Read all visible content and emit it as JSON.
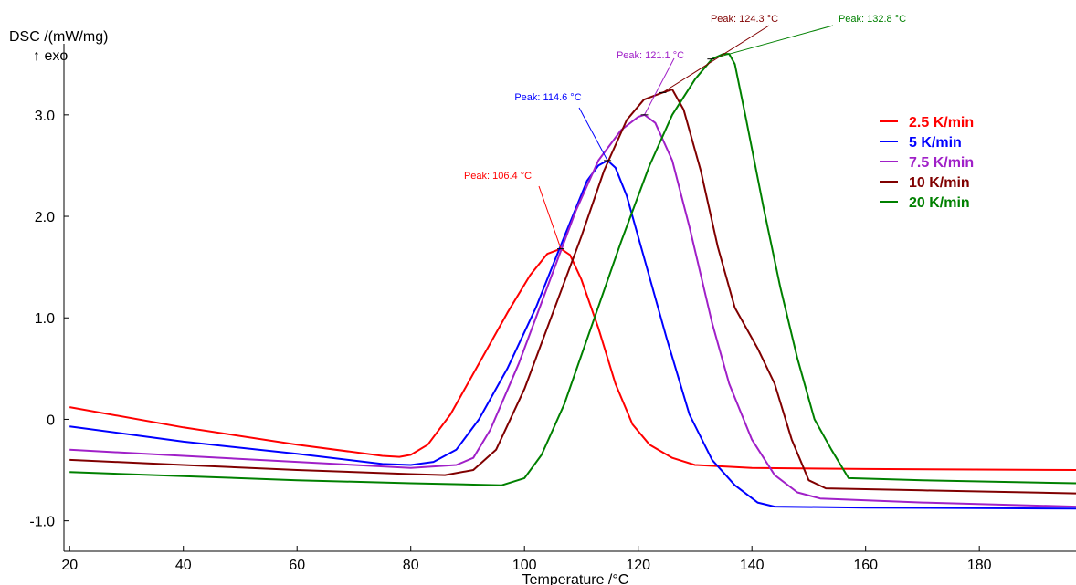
{
  "chart_data": {
    "type": "line",
    "ylabel": "DSC /(mW/mg)",
    "ylabel_sub": "↑ exo",
    "xlabel": "Temperature /°C",
    "xlim": [
      19,
      197
    ],
    "ylim": [
      -1.3,
      3.7
    ],
    "x_ticks": [
      20,
      40,
      60,
      80,
      100,
      120,
      140,
      160,
      180
    ],
    "x_tick_labels": [
      "20",
      "40",
      "60",
      "80",
      "100",
      "120",
      "140",
      "160",
      "180"
    ],
    "y_ticks": [
      -1.0,
      0,
      1.0,
      2.0,
      3.0
    ],
    "y_tick_labels": [
      "-1.0",
      "0",
      "1.0",
      "2.0",
      "3.0"
    ],
    "grid": false,
    "legend_position": "top-right",
    "series": [
      {
        "name": "2.5 K/min",
        "color": "#ff0000",
        "points": [
          [
            20,
            0.12
          ],
          [
            40,
            -0.08
          ],
          [
            60,
            -0.25
          ],
          [
            75,
            -0.36
          ],
          [
            78,
            -0.37
          ],
          [
            80,
            -0.35
          ],
          [
            83,
            -0.25
          ],
          [
            87,
            0.05
          ],
          [
            92,
            0.55
          ],
          [
            97,
            1.05
          ],
          [
            101,
            1.42
          ],
          [
            104,
            1.63
          ],
          [
            106.4,
            1.68
          ],
          [
            108,
            1.62
          ],
          [
            110,
            1.38
          ],
          [
            113,
            0.9
          ],
          [
            116,
            0.35
          ],
          [
            119,
            -0.05
          ],
          [
            122,
            -0.25
          ],
          [
            126,
            -0.38
          ],
          [
            130,
            -0.45
          ],
          [
            140,
            -0.48
          ],
          [
            160,
            -0.49
          ],
          [
            197,
            -0.5
          ]
        ],
        "peak_label": "Peak: 106.4 °C",
        "peak_x": 106.4,
        "peak_y": 1.68
      },
      {
        "name": "5 K/min",
        "color": "#0000ff",
        "points": [
          [
            20,
            -0.07
          ],
          [
            40,
            -0.22
          ],
          [
            60,
            -0.34
          ],
          [
            75,
            -0.44
          ],
          [
            80,
            -0.45
          ],
          [
            84,
            -0.42
          ],
          [
            88,
            -0.3
          ],
          [
            92,
            0.0
          ],
          [
            97,
            0.5
          ],
          [
            102,
            1.1
          ],
          [
            107,
            1.8
          ],
          [
            111,
            2.35
          ],
          [
            113,
            2.5
          ],
          [
            114.6,
            2.55
          ],
          [
            116,
            2.48
          ],
          [
            118,
            2.2
          ],
          [
            121,
            1.6
          ],
          [
            125,
            0.8
          ],
          [
            129,
            0.05
          ],
          [
            133,
            -0.4
          ],
          [
            137,
            -0.65
          ],
          [
            141,
            -0.82
          ],
          [
            144,
            -0.86
          ],
          [
            160,
            -0.87
          ],
          [
            197,
            -0.88
          ]
        ],
        "peak_label": "Peak: 114.6 °C",
        "peak_x": 114.6,
        "peak_y": 2.55
      },
      {
        "name": "7.5 K/min",
        "color": "#a020c8",
        "points": [
          [
            20,
            -0.3
          ],
          [
            40,
            -0.36
          ],
          [
            60,
            -0.42
          ],
          [
            80,
            -0.48
          ],
          [
            88,
            -0.45
          ],
          [
            91,
            -0.38
          ],
          [
            94,
            -0.1
          ],
          [
            99,
            0.55
          ],
          [
            104,
            1.3
          ],
          [
            109,
            2.05
          ],
          [
            113,
            2.55
          ],
          [
            117,
            2.85
          ],
          [
            120,
            2.98
          ],
          [
            121.1,
            3.0
          ],
          [
            123,
            2.92
          ],
          [
            126,
            2.55
          ],
          [
            129,
            1.9
          ],
          [
            133,
            0.95
          ],
          [
            136,
            0.35
          ],
          [
            140,
            -0.2
          ],
          [
            144,
            -0.55
          ],
          [
            148,
            -0.72
          ],
          [
            152,
            -0.78
          ],
          [
            170,
            -0.82
          ],
          [
            197,
            -0.86
          ]
        ],
        "peak_label": "Peak: 121.1 °C",
        "peak_x": 121.1,
        "peak_y": 3.0
      },
      {
        "name": "10 K/min",
        "color": "#800000",
        "points": [
          [
            20,
            -0.4
          ],
          [
            40,
            -0.45
          ],
          [
            60,
            -0.5
          ],
          [
            80,
            -0.54
          ],
          [
            86,
            -0.55
          ],
          [
            91,
            -0.5
          ],
          [
            95,
            -0.3
          ],
          [
            100,
            0.3
          ],
          [
            105,
            1.05
          ],
          [
            110,
            1.8
          ],
          [
            114,
            2.45
          ],
          [
            118,
            2.95
          ],
          [
            121,
            3.15
          ],
          [
            124.3,
            3.22
          ],
          [
            126,
            3.25
          ],
          [
            128,
            3.05
          ],
          [
            131,
            2.45
          ],
          [
            134,
            1.7
          ],
          [
            137,
            1.1
          ],
          [
            141,
            0.7
          ],
          [
            144,
            0.35
          ],
          [
            147,
            -0.2
          ],
          [
            150,
            -0.6
          ],
          [
            153,
            -0.68
          ],
          [
            170,
            -0.7
          ],
          [
            197,
            -0.73
          ]
        ],
        "peak_label": "Peak: 124.3 °C",
        "peak_x": 124.3,
        "peak_y": 3.22
      },
      {
        "name": "20 K/min",
        "color": "#008000",
        "points": [
          [
            20,
            -0.52
          ],
          [
            40,
            -0.56
          ],
          [
            60,
            -0.6
          ],
          [
            80,
            -0.63
          ],
          [
            96,
            -0.65
          ],
          [
            100,
            -0.58
          ],
          [
            103,
            -0.35
          ],
          [
            107,
            0.15
          ],
          [
            112,
            0.95
          ],
          [
            117,
            1.75
          ],
          [
            122,
            2.5
          ],
          [
            126,
            3.0
          ],
          [
            130,
            3.35
          ],
          [
            133,
            3.55
          ],
          [
            135,
            3.6
          ],
          [
            136,
            3.6
          ],
          [
            137,
            3.5
          ],
          [
            139,
            2.95
          ],
          [
            142,
            2.1
          ],
          [
            145,
            1.3
          ],
          [
            148,
            0.6
          ],
          [
            151,
            0.0
          ],
          [
            154,
            -0.3
          ],
          [
            157,
            -0.58
          ],
          [
            170,
            -0.6
          ],
          [
            197,
            -0.63
          ]
        ],
        "peak_label": "Peak: 132.8 °C",
        "peak_x": 132.8,
        "peak_y": 3.55
      }
    ]
  }
}
